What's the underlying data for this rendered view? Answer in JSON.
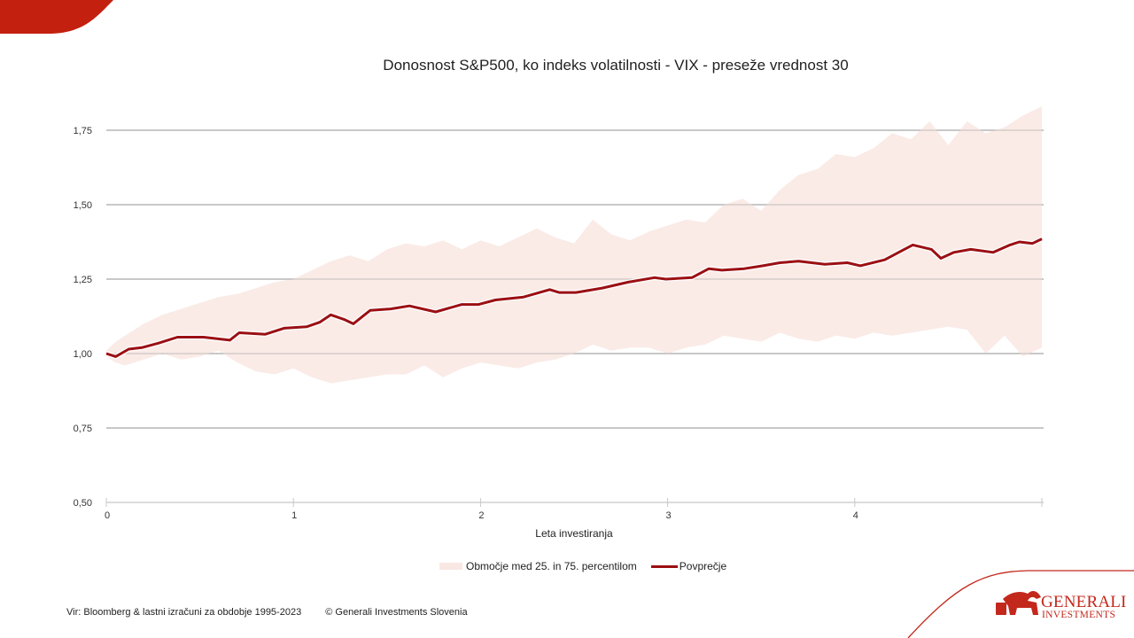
{
  "brand": {
    "accent": "#c3281c",
    "logo_line1": "GENERALI",
    "logo_line2": "INVESTMENTS"
  },
  "footer": {
    "source": "Vir: Bloomberg & lastni izračuni za  obdobje 1995-2023",
    "copyright": "© Generali Investments Slovenia"
  },
  "chart_data": {
    "type": "area",
    "title": "Donosnost S&P500, ko indeks volatilnosti - VIX - preseže vrednost 30",
    "xlabel": "Leta investiranja",
    "ylabel": "",
    "xlim": [
      0,
      5
    ],
    "ylim": [
      0.5,
      1.85
    ],
    "x_ticks": [
      0,
      1,
      2,
      3,
      4,
      5
    ],
    "x_tick_labels": [
      "0",
      "1",
      "2",
      "3",
      "4",
      ""
    ],
    "y_ticks": [
      0.5,
      0.75,
      1.0,
      1.25,
      1.5,
      1.75
    ],
    "y_tick_labels": [
      "0,50",
      "0,75",
      "1,00",
      "1,25",
      "1,50",
      "1,75"
    ],
    "grid": true,
    "legend_position": "bottom",
    "colors": {
      "band": "#f9e7e3",
      "mean": "#9b0f13",
      "grid": "#a6a6a6"
    },
    "series": [
      {
        "name": "Območje med 25. in 75. percentilom",
        "kind": "band",
        "x": [
          0,
          0.05,
          0.1,
          0.15,
          0.2,
          0.3,
          0.4,
          0.5,
          0.6,
          0.7,
          0.8,
          0.9,
          1.0,
          1.1,
          1.2,
          1.3,
          1.4,
          1.5,
          1.6,
          1.7,
          1.8,
          1.9,
          2.0,
          2.1,
          2.2,
          2.3,
          2.4,
          2.5,
          2.6,
          2.7,
          2.8,
          2.9,
          3.0,
          3.1,
          3.2,
          3.3,
          3.4,
          3.5,
          3.6,
          3.7,
          3.8,
          3.9,
          4.0,
          4.1,
          4.2,
          4.3,
          4.4,
          4.5,
          4.6,
          4.7,
          4.8,
          4.9,
          5.0
        ],
        "upper": [
          1.01,
          1.04,
          1.06,
          1.08,
          1.1,
          1.13,
          1.15,
          1.17,
          1.19,
          1.2,
          1.22,
          1.24,
          1.25,
          1.28,
          1.31,
          1.33,
          1.31,
          1.35,
          1.37,
          1.36,
          1.38,
          1.35,
          1.38,
          1.36,
          1.39,
          1.42,
          1.39,
          1.37,
          1.45,
          1.4,
          1.38,
          1.41,
          1.43,
          1.45,
          1.44,
          1.5,
          1.52,
          1.48,
          1.55,
          1.6,
          1.62,
          1.67,
          1.66,
          1.69,
          1.74,
          1.72,
          1.78,
          1.7,
          1.78,
          1.74,
          1.76,
          1.8,
          1.83
        ],
        "lower": [
          0.99,
          0.97,
          0.96,
          0.97,
          0.98,
          1.0,
          0.98,
          0.99,
          1.01,
          0.97,
          0.94,
          0.93,
          0.95,
          0.92,
          0.9,
          0.91,
          0.92,
          0.93,
          0.93,
          0.96,
          0.92,
          0.95,
          0.97,
          0.96,
          0.95,
          0.97,
          0.98,
          1.0,
          1.03,
          1.01,
          1.02,
          1.02,
          1.0,
          1.02,
          1.03,
          1.06,
          1.05,
          1.04,
          1.07,
          1.05,
          1.04,
          1.06,
          1.05,
          1.07,
          1.06,
          1.07,
          1.08,
          1.09,
          1.08,
          1.0,
          1.06,
          0.99,
          1.02
        ]
      },
      {
        "name": "Povprečje",
        "kind": "line",
        "x": [
          0,
          0.05,
          0.12,
          0.19,
          0.28,
          0.38,
          0.52,
          0.66,
          0.71,
          0.85,
          0.95,
          1.07,
          1.14,
          1.2,
          1.27,
          1.32,
          1.38,
          1.41,
          1.52,
          1.62,
          1.76,
          1.9,
          1.99,
          2.08,
          2.23,
          2.37,
          2.42,
          2.51,
          2.65,
          2.79,
          2.93,
          2.99,
          3.13,
          3.22,
          3.29,
          3.41,
          3.51,
          3.6,
          3.7,
          3.84,
          3.96,
          4.03,
          4.16,
          4.22,
          4.31,
          4.41,
          4.46,
          4.53,
          4.62,
          4.74,
          4.83,
          4.88,
          4.95,
          5.0
        ],
        "values": [
          1.0,
          0.99,
          1.015,
          1.02,
          1.035,
          1.055,
          1.055,
          1.045,
          1.07,
          1.065,
          1.085,
          1.09,
          1.105,
          1.13,
          1.115,
          1.1,
          1.13,
          1.145,
          1.15,
          1.16,
          1.14,
          1.165,
          1.165,
          1.18,
          1.19,
          1.215,
          1.205,
          1.205,
          1.22,
          1.24,
          1.255,
          1.25,
          1.255,
          1.285,
          1.28,
          1.285,
          1.295,
          1.305,
          1.31,
          1.3,
          1.305,
          1.295,
          1.315,
          1.335,
          1.365,
          1.35,
          1.32,
          1.34,
          1.35,
          1.34,
          1.365,
          1.375,
          1.37,
          1.385
        ]
      }
    ]
  }
}
